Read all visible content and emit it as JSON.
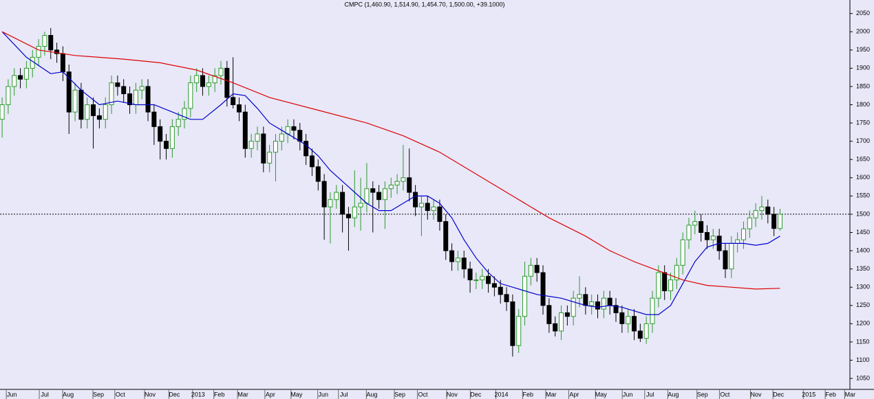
{
  "chart_data": {
    "type": "candlestick",
    "title": "CMPC (1,460.90, 1,514.90, 1,454.70, 1,500.00, +39.1000)",
    "up_color": "#2a9a2a",
    "down_color": "#000000",
    "candles": [
      [
        1760,
        1820,
        1710,
        1800
      ],
      [
        1800,
        1870,
        1775,
        1850
      ],
      [
        1850,
        1900,
        1825,
        1880
      ],
      [
        1880,
        1900,
        1845,
        1870
      ],
      [
        1870,
        1920,
        1845,
        1900
      ],
      [
        1900,
        1950,
        1875,
        1930
      ],
      [
        1930,
        1980,
        1905,
        1960
      ],
      [
        1960,
        2000,
        1935,
        1990
      ],
      [
        1990,
        2010,
        1925,
        1950
      ],
      [
        1950,
        1970,
        1915,
        1940
      ],
      [
        1940,
        1960,
        1865,
        1890
      ],
      [
        1890,
        1910,
        1720,
        1780
      ],
      [
        1780,
        1860,
        1755,
        1840
      ],
      [
        1840,
        1860,
        1735,
        1760
      ],
      [
        1760,
        1820,
        1735,
        1800
      ],
      [
        1800,
        1820,
        1680,
        1770
      ],
      [
        1770,
        1790,
        1735,
        1760
      ],
      [
        1760,
        1820,
        1735,
        1800
      ],
      [
        1800,
        1880,
        1775,
        1860
      ],
      [
        1860,
        1880,
        1825,
        1850
      ],
      [
        1850,
        1870,
        1805,
        1830
      ],
      [
        1830,
        1850,
        1775,
        1800
      ],
      [
        1800,
        1860,
        1775,
        1840
      ],
      [
        1840,
        1870,
        1815,
        1850
      ],
      [
        1850,
        1870,
        1755,
        1780
      ],
      [
        1780,
        1800,
        1690,
        1740
      ],
      [
        1740,
        1760,
        1650,
        1700
      ],
      [
        1700,
        1720,
        1650,
        1680
      ],
      [
        1680,
        1760,
        1655,
        1740
      ],
      [
        1740,
        1780,
        1715,
        1760
      ],
      [
        1760,
        1810,
        1735,
        1790
      ],
      [
        1790,
        1880,
        1765,
        1860
      ],
      [
        1860,
        1900,
        1835,
        1880
      ],
      [
        1880,
        1900,
        1825,
        1850
      ],
      [
        1850,
        1880,
        1825,
        1860
      ],
      [
        1860,
        1900,
        1835,
        1880
      ],
      [
        1880,
        1920,
        1855,
        1900
      ],
      [
        1900,
        1920,
        1795,
        1820
      ],
      [
        1820,
        1930,
        1790,
        1800
      ],
      [
        1800,
        1820,
        1755,
        1780
      ],
      [
        1780,
        1800,
        1655,
        1680
      ],
      [
        1680,
        1720,
        1655,
        1700
      ],
      [
        1700,
        1740,
        1675,
        1720
      ],
      [
        1720,
        1740,
        1615,
        1640
      ],
      [
        1640,
        1690,
        1615,
        1670
      ],
      [
        1670,
        1720,
        1590,
        1700
      ],
      [
        1700,
        1740,
        1675,
        1720
      ],
      [
        1720,
        1760,
        1695,
        1740
      ],
      [
        1740,
        1760,
        1705,
        1730
      ],
      [
        1730,
        1750,
        1675,
        1700
      ],
      [
        1700,
        1720,
        1635,
        1660
      ],
      [
        1660,
        1680,
        1605,
        1630
      ],
      [
        1630,
        1650,
        1565,
        1590
      ],
      [
        1590,
        1610,
        1430,
        1520
      ],
      [
        1520,
        1560,
        1420,
        1540
      ],
      [
        1540,
        1580,
        1515,
        1560
      ],
      [
        1560,
        1580,
        1450,
        1500
      ],
      [
        1500,
        1520,
        1400,
        1490
      ],
      [
        1490,
        1620,
        1465,
        1520
      ],
      [
        1520,
        1600,
        1455,
        1530
      ],
      [
        1530,
        1640,
        1505,
        1570
      ],
      [
        1570,
        1590,
        1450,
        1560
      ],
      [
        1560,
        1580,
        1515,
        1540
      ],
      [
        1540,
        1590,
        1460,
        1570
      ],
      [
        1570,
        1600,
        1545,
        1580
      ],
      [
        1580,
        1610,
        1555,
        1590
      ],
      [
        1590,
        1690,
        1565,
        1600
      ],
      [
        1600,
        1680,
        1535,
        1560
      ],
      [
        1560,
        1580,
        1495,
        1520
      ],
      [
        1520,
        1550,
        1440,
        1530
      ],
      [
        1530,
        1550,
        1485,
        1510
      ],
      [
        1510,
        1540,
        1485,
        1520
      ],
      [
        1520,
        1540,
        1455,
        1480
      ],
      [
        1480,
        1500,
        1375,
        1400
      ],
      [
        1400,
        1420,
        1345,
        1370
      ],
      [
        1370,
        1400,
        1345,
        1380
      ],
      [
        1380,
        1400,
        1325,
        1350
      ],
      [
        1350,
        1370,
        1285,
        1320
      ],
      [
        1320,
        1340,
        1295,
        1320
      ],
      [
        1320,
        1350,
        1295,
        1330
      ],
      [
        1330,
        1350,
        1285,
        1310
      ],
      [
        1310,
        1330,
        1275,
        1300
      ],
      [
        1300,
        1320,
        1255,
        1280
      ],
      [
        1280,
        1300,
        1235,
        1260
      ],
      [
        1260,
        1280,
        1110,
        1140
      ],
      [
        1140,
        1240,
        1120,
        1220
      ],
      [
        1220,
        1370,
        1195,
        1330
      ],
      [
        1330,
        1380,
        1305,
        1360
      ],
      [
        1360,
        1380,
        1315,
        1340
      ],
      [
        1340,
        1360,
        1225,
        1250
      ],
      [
        1250,
        1270,
        1175,
        1200
      ],
      [
        1200,
        1220,
        1165,
        1180
      ],
      [
        1180,
        1250,
        1155,
        1230
      ],
      [
        1230,
        1250,
        1195,
        1220
      ],
      [
        1220,
        1290,
        1195,
        1270
      ],
      [
        1270,
        1330,
        1245,
        1280
      ],
      [
        1280,
        1300,
        1225,
        1250
      ],
      [
        1250,
        1280,
        1225,
        1260
      ],
      [
        1260,
        1280,
        1215,
        1240
      ],
      [
        1240,
        1290,
        1215,
        1270
      ],
      [
        1270,
        1290,
        1225,
        1250
      ],
      [
        1250,
        1270,
        1205,
        1230
      ],
      [
        1230,
        1250,
        1175,
        1200
      ],
      [
        1200,
        1240,
        1175,
        1220
      ],
      [
        1220,
        1240,
        1155,
        1180
      ],
      [
        1180,
        1200,
        1150,
        1160
      ],
      [
        1160,
        1220,
        1145,
        1200
      ],
      [
        1200,
        1290,
        1175,
        1270
      ],
      [
        1270,
        1360,
        1245,
        1340
      ],
      [
        1340,
        1360,
        1265,
        1290
      ],
      [
        1290,
        1340,
        1265,
        1320
      ],
      [
        1320,
        1380,
        1295,
        1360
      ],
      [
        1360,
        1450,
        1335,
        1430
      ],
      [
        1430,
        1490,
        1405,
        1470
      ],
      [
        1470,
        1510,
        1445,
        1480
      ],
      [
        1480,
        1500,
        1425,
        1450
      ],
      [
        1450,
        1470,
        1405,
        1430
      ],
      [
        1430,
        1460,
        1405,
        1440
      ],
      [
        1440,
        1460,
        1375,
        1400
      ],
      [
        1400,
        1420,
        1325,
        1350
      ],
      [
        1350,
        1440,
        1325,
        1420
      ],
      [
        1420,
        1450,
        1395,
        1430
      ],
      [
        1430,
        1480,
        1405,
        1460
      ],
      [
        1460,
        1510,
        1435,
        1490
      ],
      [
        1490,
        1530,
        1465,
        1510
      ],
      [
        1510,
        1550,
        1485,
        1520
      ],
      [
        1520,
        1540,
        1475,
        1500
      ],
      [
        1500,
        1520,
        1440,
        1461
      ],
      [
        1460.9,
        1514.9,
        1454.7,
        1500
      ]
    ],
    "lines": [
      {
        "color": "#0000cc",
        "x": [
          0,
          4,
          8,
          10,
          13,
          16,
          19,
          22,
          25,
          28,
          31,
          33,
          36,
          38,
          40,
          42,
          44,
          46,
          48,
          50,
          52,
          54,
          56,
          58,
          60,
          62,
          64,
          66,
          68,
          70,
          72,
          74,
          76,
          78,
          80,
          82,
          84,
          86,
          88,
          90,
          92,
          94,
          96,
          98,
          100,
          102,
          104,
          106,
          108,
          110,
          112,
          114,
          116,
          118,
          120,
          122,
          124,
          126,
          128
        ],
        "values": [
          2000,
          1930,
          1885,
          1890,
          1840,
          1800,
          1810,
          1800,
          1800,
          1780,
          1760,
          1760,
          1800,
          1830,
          1825,
          1790,
          1750,
          1730,
          1710,
          1690,
          1660,
          1620,
          1590,
          1560,
          1530,
          1510,
          1510,
          1530,
          1550,
          1550,
          1530,
          1490,
          1430,
          1380,
          1340,
          1310,
          1300,
          1290,
          1280,
          1275,
          1270,
          1260,
          1250,
          1245,
          1250,
          1245,
          1235,
          1225,
          1225,
          1250,
          1310,
          1370,
          1410,
          1420,
          1420,
          1420,
          1415,
          1420,
          1440
        ]
      },
      {
        "color": "#dd0000",
        "x": [
          0,
          6,
          12,
          20,
          26,
          32,
          38,
          44,
          52,
          60,
          66,
          72,
          78,
          84,
          90,
          96,
          100,
          104,
          108,
          112,
          116,
          120,
          124,
          128
        ],
        "values": [
          2000,
          1950,
          1935,
          1925,
          1915,
          1895,
          1860,
          1820,
          1785,
          1750,
          1715,
          1670,
          1610,
          1550,
          1490,
          1440,
          1400,
          1370,
          1345,
          1320,
          1305,
          1300,
          1295,
          1297
        ]
      }
    ],
    "ref_line": 1500,
    "xlim": [
      -0.35,
      139.5
    ],
    "xticks": [
      {
        "value": 1.25,
        "label": "Jun"
      },
      {
        "value": 6.68,
        "label": "Jul"
      },
      {
        "value": 10.53,
        "label": "Aug"
      },
      {
        "value": 15.5,
        "label": "Sep"
      },
      {
        "value": 19.1,
        "label": "Oct"
      },
      {
        "value": 24.0,
        "label": "Nov"
      },
      {
        "value": 28.0,
        "label": "Dec"
      },
      {
        "value": 31.9,
        "label": "2013"
      },
      {
        "value": 35.4,
        "label": "Feb"
      },
      {
        "value": 39.3,
        "label": "Mar"
      },
      {
        "value": 43.8,
        "label": "Apr"
      },
      {
        "value": 48.1,
        "label": "May"
      },
      {
        "value": 52.5,
        "label": "Jun"
      },
      {
        "value": 55.9,
        "label": "Jul"
      },
      {
        "value": 60.5,
        "label": "Aug"
      },
      {
        "value": 65.1,
        "label": "Sep"
      },
      {
        "value": 68.9,
        "label": "Oct"
      },
      {
        "value": 73.7,
        "label": "Nov"
      },
      {
        "value": 77.6,
        "label": "Dec"
      },
      {
        "value": 81.8,
        "label": "2014"
      },
      {
        "value": 86.2,
        "label": "Feb"
      },
      {
        "value": 90.0,
        "label": "Mar"
      },
      {
        "value": 93.8,
        "label": "Apr"
      },
      {
        "value": 98.2,
        "label": "May"
      },
      {
        "value": 102.6,
        "label": "Jun"
      },
      {
        "value": 106.3,
        "label": "Jul"
      },
      {
        "value": 110.1,
        "label": "Aug"
      },
      {
        "value": 114.9,
        "label": "Sep"
      },
      {
        "value": 118.6,
        "label": "Oct"
      },
      {
        "value": 123.7,
        "label": "Nov"
      },
      {
        "value": 127.4,
        "label": "Dec"
      },
      {
        "value": 132.4,
        "label": "2015"
      },
      {
        "value": 136.0,
        "label": "Feb"
      },
      {
        "value": 139.2,
        "label": "Mar"
      }
    ],
    "ylim": [
      1020,
      2087
    ],
    "yticks": [
      1050,
      1100,
      1150,
      1200,
      1250,
      1300,
      1350,
      1400,
      1450,
      1500,
      1550,
      1600,
      1650,
      1700,
      1750,
      1800,
      1850,
      1900,
      1950,
      2000,
      2050
    ]
  }
}
